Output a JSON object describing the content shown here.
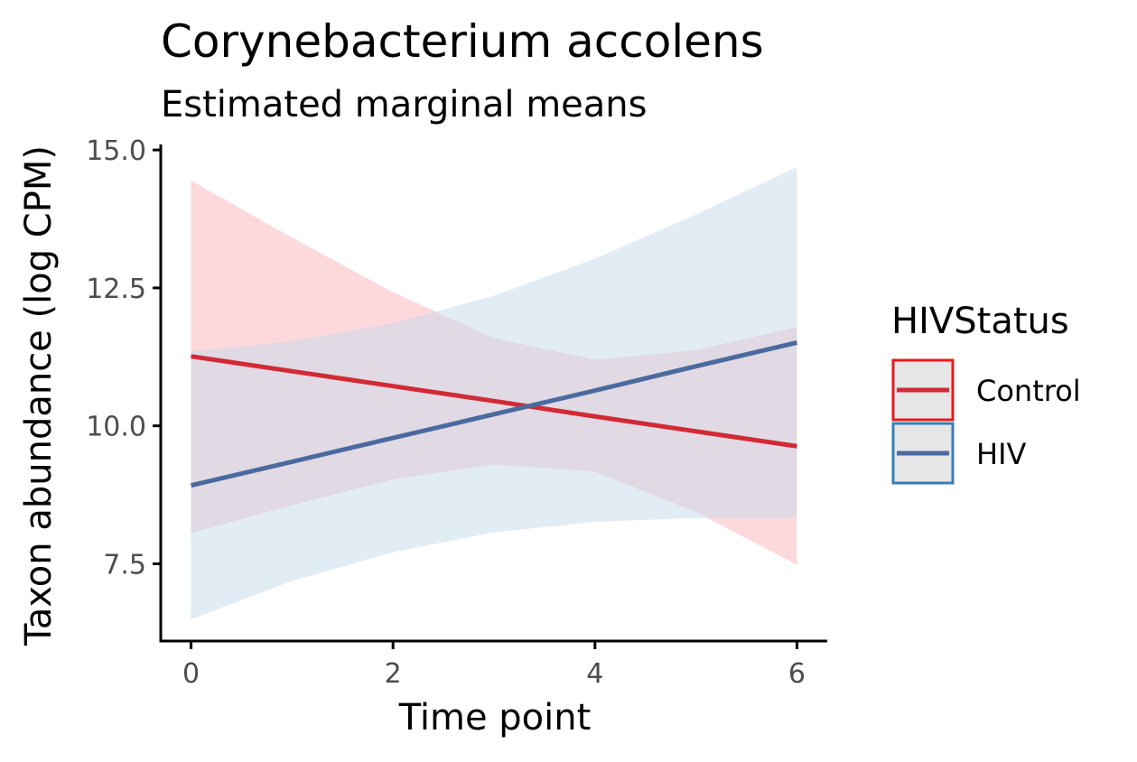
{
  "chart_data": {
    "type": "line",
    "title": "Corynebacterium accolens",
    "subtitle": "Estimated marginal means",
    "xlabel": "Time point",
    "ylabel": "Taxon abundance (log CPM)",
    "xlim": [
      -0.3,
      6.3
    ],
    "ylim": [
      6.1,
      15.1
    ],
    "x_ticks": [
      0,
      2,
      4,
      6
    ],
    "x_tick_labels": [
      "0",
      "2",
      "4",
      "6"
    ],
    "y_ticks": [
      7.5,
      10.0,
      12.5,
      15.0
    ],
    "y_tick_labels": [
      "7.5",
      "10.0",
      "12.5",
      "15.0"
    ],
    "grid": false,
    "legend": {
      "title": "HIVStatus",
      "position": "right"
    },
    "x": [
      0,
      1,
      2,
      3,
      4,
      5,
      6
    ],
    "series": [
      {
        "name": "Control",
        "color": "#d12a35",
        "fill": "#fbb4b9",
        "line": [
          11.26,
          10.99,
          10.72,
          10.45,
          10.17,
          9.9,
          9.63
        ],
        "lower": [
          8.06,
          8.56,
          9.03,
          9.3,
          9.17,
          8.44,
          7.48
        ],
        "upper": [
          14.45,
          13.41,
          12.42,
          11.59,
          11.2,
          11.37,
          11.79
        ]
      },
      {
        "name": "HIV",
        "color": "#4a6a9e",
        "fill": "#c6d9ec",
        "line": [
          8.92,
          9.35,
          9.78,
          10.21,
          10.64,
          11.08,
          11.51
        ],
        "lower": [
          6.49,
          7.19,
          7.71,
          8.07,
          8.26,
          8.33,
          8.33
        ],
        "upper": [
          11.35,
          11.53,
          11.86,
          12.36,
          13.03,
          13.83,
          14.69
        ]
      }
    ]
  },
  "colors": {
    "axis": "#000000",
    "tick_label": "#4d4d4d",
    "legend_key_bg": "#e6e6e6",
    "legend_key_border_control": "#e41a1c",
    "legend_key_border_hiv": "#377eb8"
  }
}
